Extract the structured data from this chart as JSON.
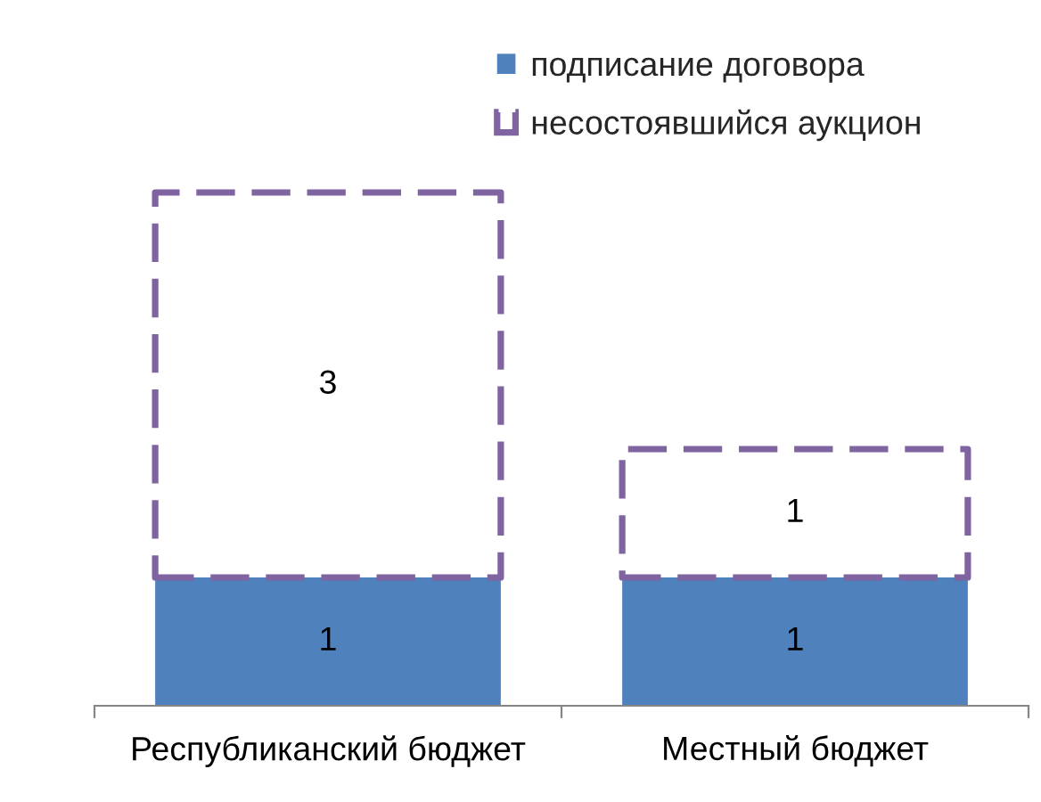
{
  "chart_data": {
    "type": "bar",
    "stacked": true,
    "categories": [
      "Республиканский бюджет",
      "Местный бюджет"
    ],
    "series": [
      {
        "name": "подписание договора",
        "color": "#4f81bd",
        "values": [
          1,
          1
        ]
      },
      {
        "name": "несостоявшийся аукцион",
        "color": "#8064a2",
        "values": [
          3,
          1
        ],
        "line_style": "dashed"
      }
    ],
    "data_labels": true,
    "legend": "top right",
    "grid": false,
    "tick_labels": "x"
  }
}
